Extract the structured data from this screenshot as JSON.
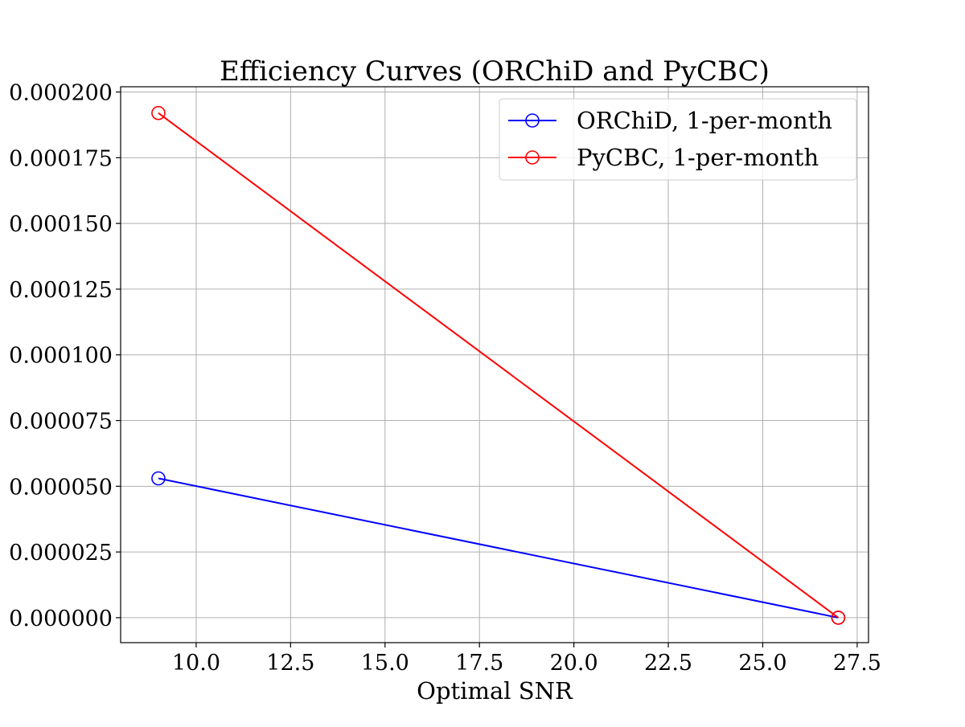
{
  "chart_data": {
    "type": "line",
    "title": "Efficiency Curves (ORChiD and PyCBC)",
    "xlabel": "Optimal SNR",
    "ylabel": "",
    "xlim": [
      8.0,
      27.8
    ],
    "ylim": [
      -9.5e-06,
      0.000202
    ],
    "x_ticks": [
      10.0,
      12.5,
      15.0,
      17.5,
      20.0,
      22.5,
      25.0,
      27.5
    ],
    "x_tick_labels": [
      "10.0",
      "12.5",
      "15.0",
      "17.5",
      "20.0",
      "22.5",
      "25.0",
      "27.5"
    ],
    "y_ticks": [
      0.0,
      2.5e-05,
      5e-05,
      7.5e-05,
      0.0001,
      0.000125,
      0.00015,
      0.000175,
      0.0002
    ],
    "y_tick_labels": [
      "0.000000",
      "0.000025",
      "0.000050",
      "0.000075",
      "0.000100",
      "0.000125",
      "0.000150",
      "0.000175",
      "0.000200"
    ],
    "grid": true,
    "legend_position": "top-right",
    "series": [
      {
        "name": "ORChiD, 1-per-month",
        "color": "#0000ff",
        "marker": "open-circle",
        "x": [
          9.0,
          27.0
        ],
        "y": [
          5.3e-05,
          0.0
        ]
      },
      {
        "name": "PyCBC, 1-per-month",
        "color": "#ff0000",
        "marker": "open-circle",
        "x": [
          9.0,
          27.0
        ],
        "y": [
          0.000192,
          0.0
        ]
      }
    ]
  }
}
